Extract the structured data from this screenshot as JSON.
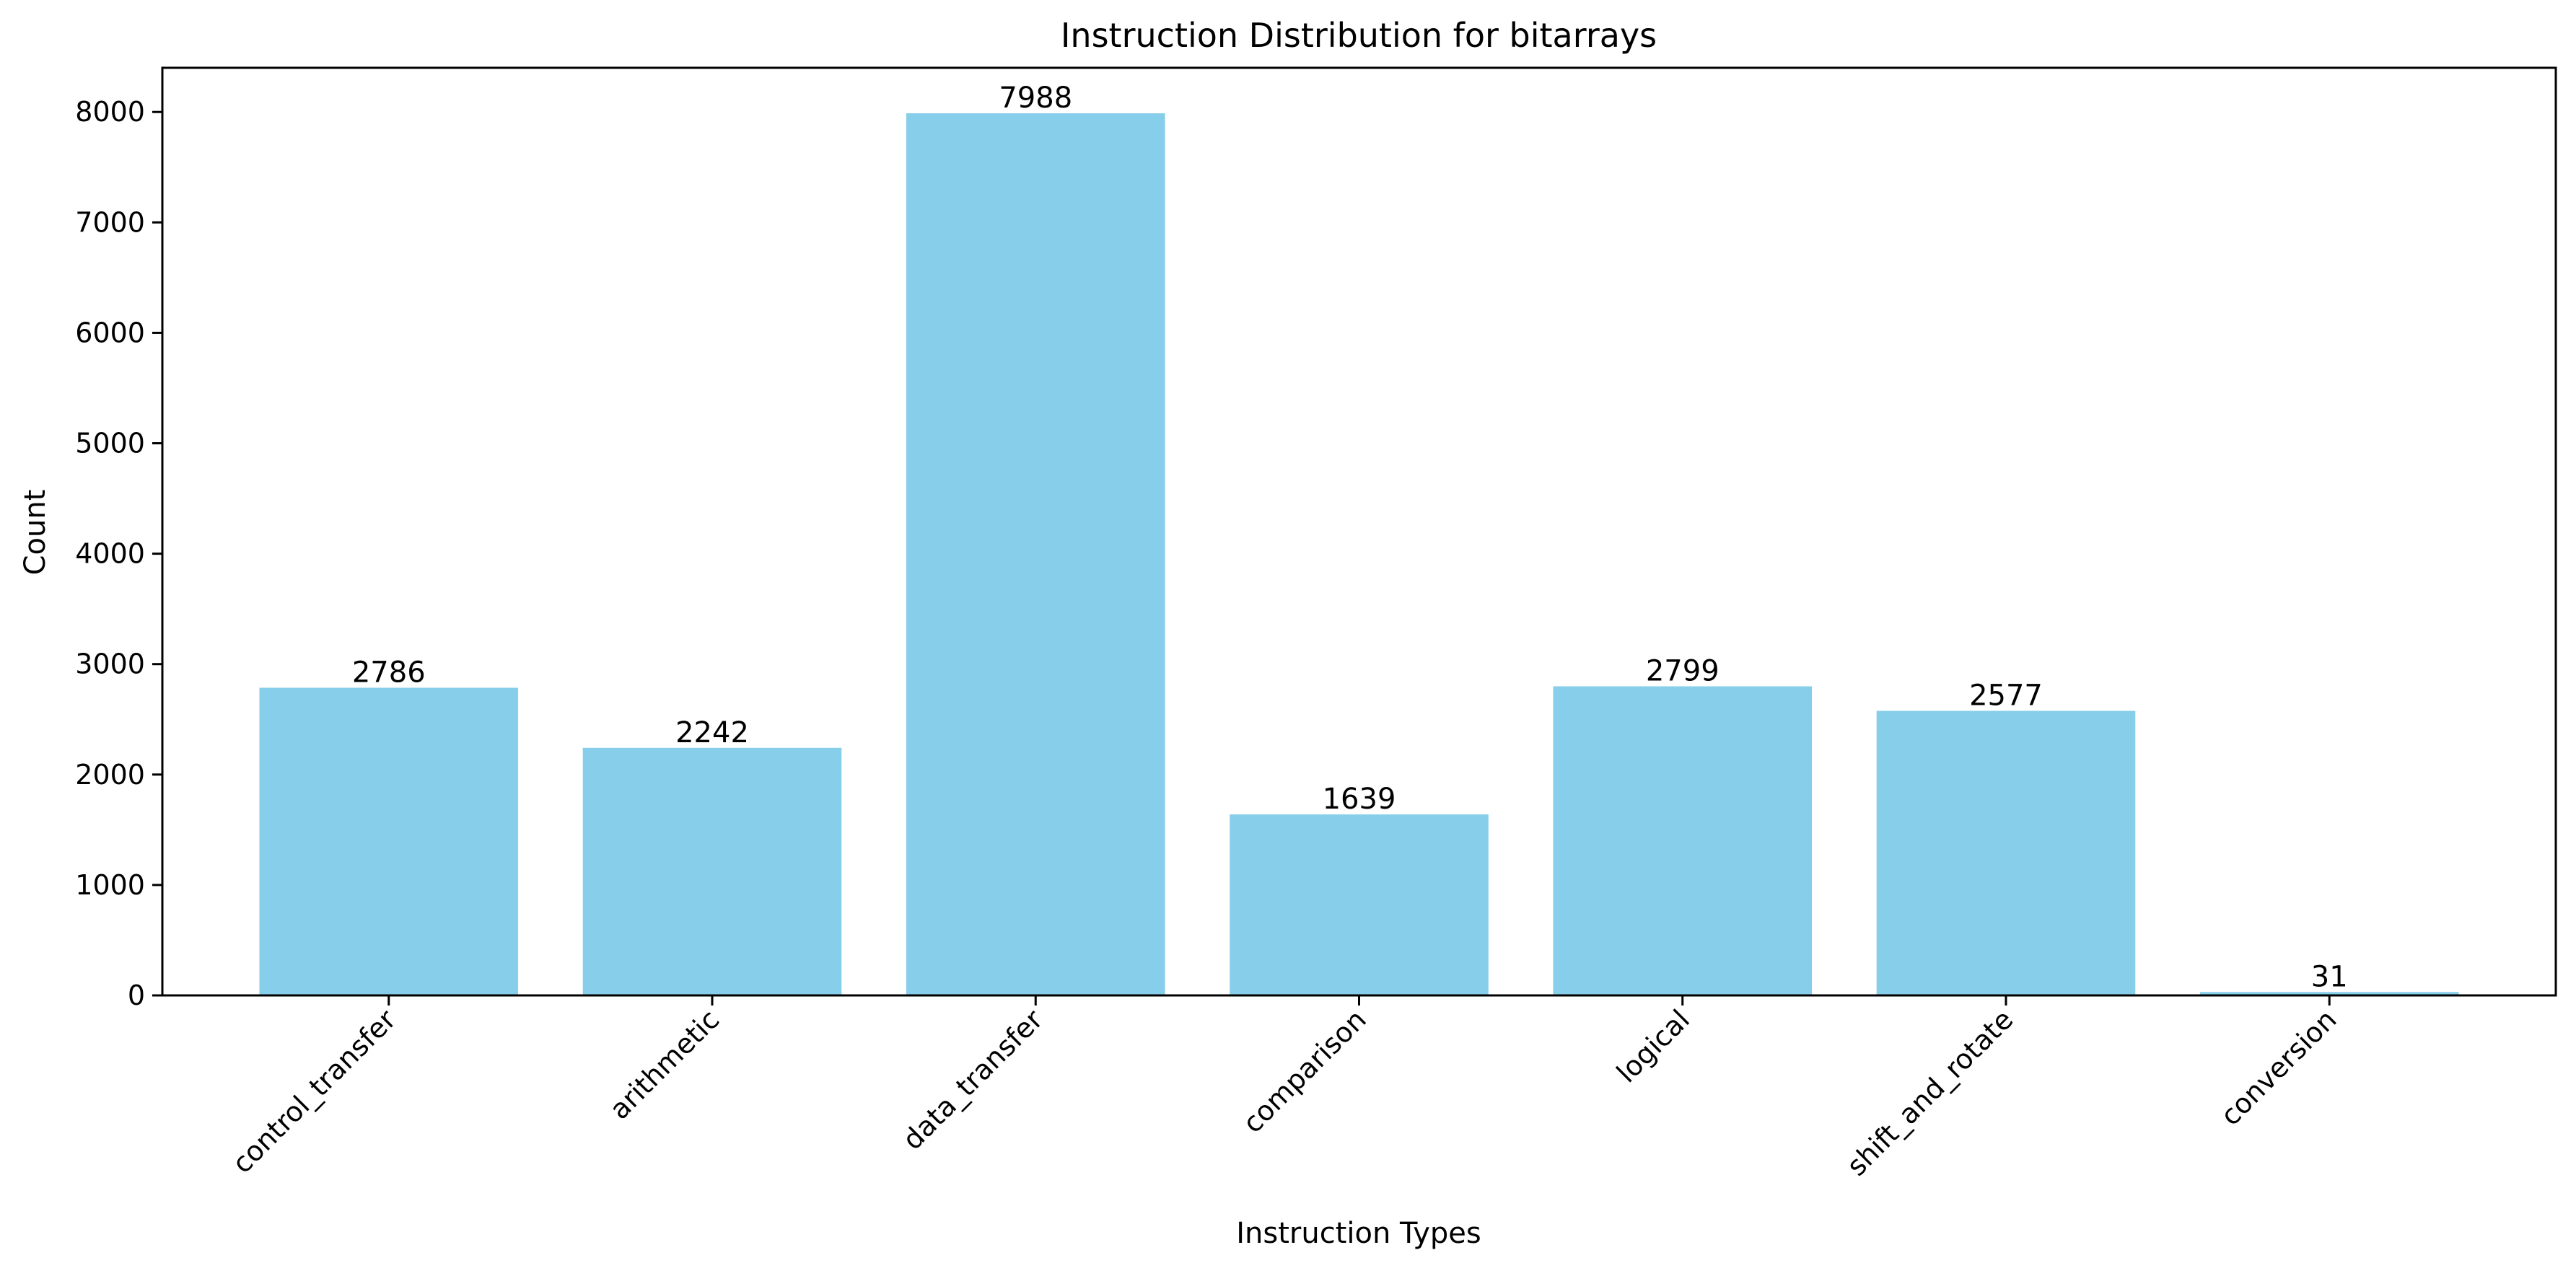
{
  "chart_data": {
    "type": "bar",
    "title": "Instruction Distribution for bitarrays",
    "xlabel": "Instruction Types",
    "ylabel": "Count",
    "categories": [
      "control_transfer",
      "arithmetic",
      "data_transfer",
      "comparison",
      "logical",
      "shift_and_rotate",
      "conversion"
    ],
    "values": [
      2786,
      2242,
      7988,
      1639,
      2799,
      2577,
      31
    ],
    "ylim": [
      0,
      8400
    ],
    "yticks": [
      0,
      1000,
      2000,
      3000,
      4000,
      5000,
      6000,
      7000,
      8000
    ],
    "bar_color": "#87CEEB",
    "grid": false,
    "legend": "none"
  }
}
